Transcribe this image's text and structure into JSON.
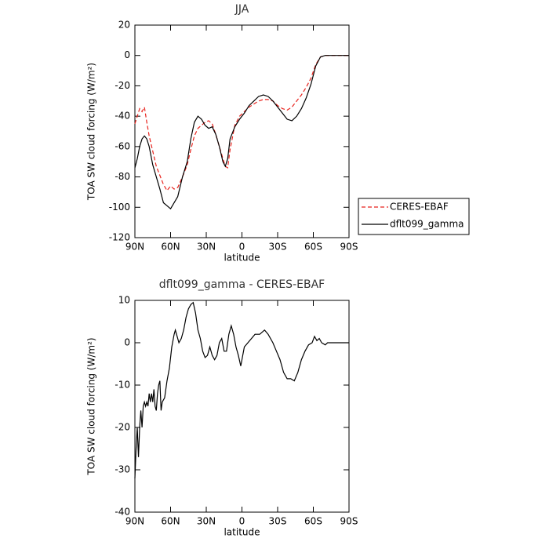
{
  "chart_data": [
    {
      "type": "line",
      "title": "JJA",
      "ylabel": "TOA SW cloud forcing (W/m²)",
      "xlabel": "latitude",
      "x": [
        90,
        88,
        86,
        84,
        82,
        80,
        78,
        75,
        72,
        69,
        66,
        63,
        60,
        57,
        54,
        50,
        46,
        43,
        40,
        37,
        34,
        31,
        28,
        25,
        22,
        19,
        16,
        14,
        12,
        10,
        6,
        2,
        -2,
        -6,
        -10,
        -14,
        -18,
        -22,
        -26,
        -30,
        -34,
        -38,
        -42,
        -46,
        -50,
        -54,
        -58,
        -62,
        -66,
        -70,
        -75,
        -80,
        -85,
        -90
      ],
      "series": [
        {
          "name": "CERES-EBAF",
          "color": "#e8221c",
          "dash": true,
          "values": [
            -45,
            -40,
            -35,
            -37,
            -34,
            -44,
            -53,
            -63,
            -73,
            -79,
            -85,
            -89,
            -86,
            -88,
            -87,
            -80,
            -72,
            -62,
            -53,
            -48,
            -46,
            -44,
            -43,
            -45,
            -52,
            -60,
            -68,
            -73,
            -74,
            -62,
            -46,
            -40,
            -37,
            -34,
            -32,
            -30,
            -29,
            -29,
            -30,
            -33,
            -35,
            -36,
            -34,
            -30,
            -26,
            -21,
            -15,
            -6,
            -1,
            0,
            0,
            0,
            0,
            0
          ]
        },
        {
          "name": "dflt099_gamma",
          "color": "#000000",
          "dash": false,
          "values": [
            -74,
            -68,
            -60,
            -55,
            -53,
            -55,
            -60,
            -72,
            -80,
            -88,
            -97,
            -99,
            -101,
            -97,
            -93,
            -80,
            -70,
            -55,
            -44,
            -40,
            -42,
            -46,
            -48,
            -47,
            -52,
            -60,
            -70,
            -73,
            -68,
            -55,
            -47,
            -42,
            -38,
            -33,
            -30,
            -27,
            -26,
            -27,
            -30,
            -34,
            -38,
            -42,
            -43,
            -40,
            -35,
            -28,
            -19,
            -7,
            -1,
            0,
            0,
            0,
            0,
            0
          ]
        }
      ],
      "xlim": [
        90,
        -90
      ],
      "xticks": [
        {
          "value": 90,
          "label": "90N"
        },
        {
          "value": 60,
          "label": "60N"
        },
        {
          "value": 30,
          "label": "30N"
        },
        0,
        {
          "value": -30,
          "label": "30S"
        },
        {
          "value": -60,
          "label": "60S"
        },
        {
          "value": -90,
          "label": "90S"
        }
      ],
      "ylim": [
        -120,
        20
      ],
      "yticks": [
        -120,
        -100,
        -80,
        -60,
        -40,
        -20,
        0,
        20
      ],
      "legend": "right"
    },
    {
      "type": "line",
      "title": "dflt099_gamma - CERES-EBAF",
      "ylabel": "TOA SW cloud forcing (W/m²)",
      "xlabel": "latitude",
      "x": [
        90,
        89,
        88,
        87,
        86,
        85,
        84,
        83,
        82,
        81,
        80,
        79,
        78,
        77,
        76,
        75,
        74,
        73,
        72,
        71,
        70,
        69,
        68,
        67,
        65,
        63,
        61,
        59,
        57,
        56,
        55,
        53,
        51,
        49,
        47,
        45,
        43,
        41,
        39,
        37,
        35,
        33,
        31,
        29,
        27,
        25,
        23,
        21,
        19,
        17,
        15,
        13,
        11,
        9,
        7,
        5,
        3,
        1,
        -2,
        -5,
        -8,
        -11,
        -15,
        -19,
        -22,
        -26,
        -29,
        -32,
        -35,
        -38,
        -41,
        -44,
        -47,
        -50,
        -53,
        -56,
        -59,
        -61,
        -63,
        -65,
        -67,
        -70,
        -72,
        -75,
        -80,
        -85,
        -90
      ],
      "series": [
        {
          "name": "dflt099_gamma - CERES-EBAF",
          "color": "#000000",
          "dash": false,
          "values": [
            -32,
            -25,
            -20,
            -27,
            -20,
            -16,
            -20,
            -15,
            -14,
            -15,
            -14,
            -15,
            -12,
            -14,
            -12,
            -14,
            -11,
            -15,
            -16,
            -12,
            -10,
            -9,
            -16,
            -14,
            -13,
            -9,
            -6,
            -1,
            2,
            3,
            2,
            0,
            1,
            3,
            6,
            8,
            9,
            9.5,
            7,
            3,
            1,
            -2,
            -3.5,
            -3,
            -1,
            -3,
            -4,
            -3,
            0,
            1,
            -2,
            -2,
            2,
            4,
            2,
            -1,
            -3,
            -5.5,
            -1,
            0,
            1,
            2,
            2,
            3,
            2,
            0,
            -2,
            -4,
            -7,
            -8.5,
            -8.5,
            -9,
            -7,
            -4,
            -2,
            -0.5,
            0,
            1.5,
            0.5,
            1,
            0,
            -0.5,
            0,
            0,
            0,
            0,
            0
          ]
        }
      ],
      "xlim": [
        90,
        -90
      ],
      "xticks": [
        {
          "value": 90,
          "label": "90N"
        },
        {
          "value": 60,
          "label": "60N"
        },
        {
          "value": 30,
          "label": "30N"
        },
        0,
        {
          "value": -30,
          "label": "30S"
        },
        {
          "value": -60,
          "label": "60S"
        },
        {
          "value": -90,
          "label": "90S"
        }
      ],
      "ylim": [
        -40,
        10
      ],
      "yticks": [
        -40,
        -30,
        -20,
        -10,
        0,
        10
      ]
    }
  ]
}
